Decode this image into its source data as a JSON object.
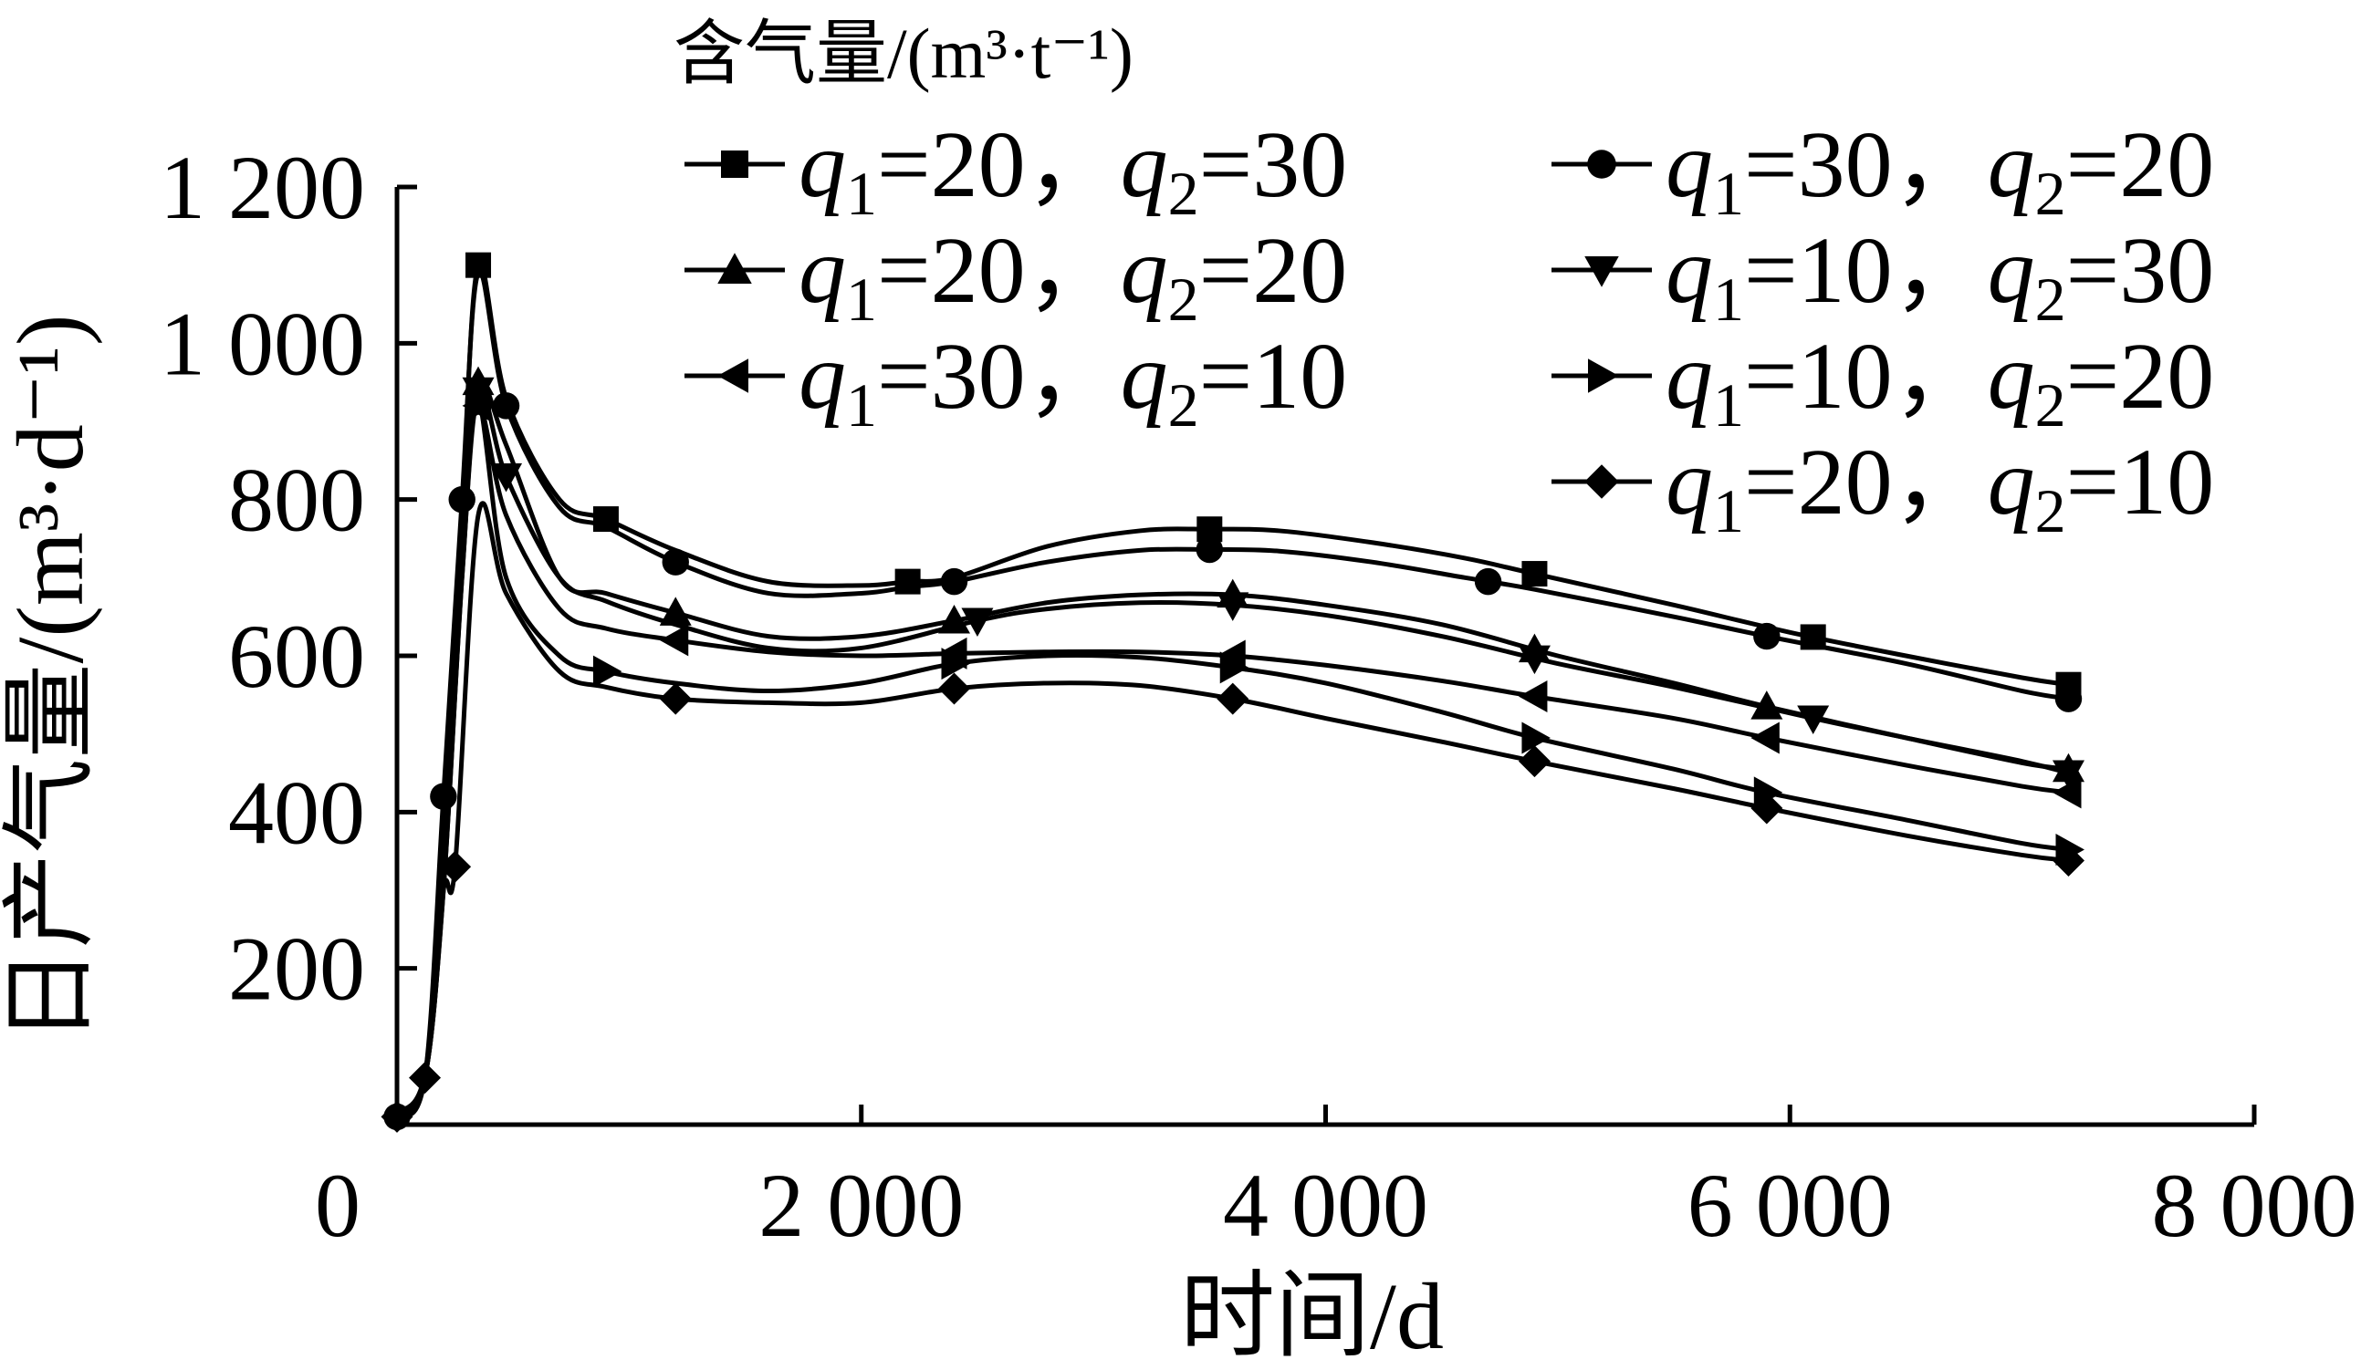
{
  "chart_data": {
    "type": "line",
    "xlabel": "时间/d",
    "ylabel": "日产气量/(m³·d⁻¹)",
    "xlim": [
      0,
      8000
    ],
    "ylim": [
      0,
      1200
    ],
    "x_ticks": [
      0,
      2000,
      4000,
      6000,
      8000
    ],
    "x_tick_labels": [
      "0",
      "2 000",
      "4 000",
      "6 000",
      "8 000"
    ],
    "y_ticks": [
      200,
      400,
      600,
      800,
      1000,
      1200
    ],
    "y_tick_labels": [
      "200",
      "400",
      "600",
      "800",
      "1 000",
      "1 200"
    ],
    "grid": false,
    "legend": {
      "title": "含气量/(m³·t⁻¹)",
      "placement": "top-right",
      "columns": 2
    },
    "series": [
      {
        "name": "q1=20，q2=30",
        "q1": "20",
        "q2": "30",
        "marker": "square",
        "legend_col": 0,
        "legend_row": 0,
        "points": [
          [
            0,
            15
          ],
          [
            120,
            65
          ],
          [
            200,
            330
          ],
          [
            280,
            780
          ],
          [
            350,
            1100
          ],
          [
            470,
            930
          ],
          [
            700,
            800
          ],
          [
            900,
            775
          ],
          [
            1200,
            735
          ],
          [
            1600,
            695
          ],
          [
            2000,
            690
          ],
          [
            2200,
            695
          ],
          [
            2400,
            700
          ],
          [
            2800,
            740
          ],
          [
            3200,
            760
          ],
          [
            3500,
            762
          ],
          [
            3800,
            760
          ],
          [
            4200,
            745
          ],
          [
            4600,
            725
          ],
          [
            4900,
            705
          ],
          [
            5500,
            665
          ],
          [
            6000,
            630
          ],
          [
            6500,
            600
          ],
          [
            7000,
            572
          ],
          [
            7200,
            563
          ]
        ],
        "marker_x": [
          350,
          900,
          2200,
          3500,
          4900,
          6100,
          7200
        ]
      },
      {
        "name": "q1=30，q2=20",
        "q1": "30",
        "q2": "20",
        "marker": "circle",
        "legend_col": 1,
        "legend_row": 0,
        "points": [
          [
            0,
            10
          ],
          [
            120,
            60
          ],
          [
            200,
            420
          ],
          [
            280,
            800
          ],
          [
            350,
            1090
          ],
          [
            470,
            920
          ],
          [
            700,
            790
          ],
          [
            900,
            765
          ],
          [
            1200,
            720
          ],
          [
            1600,
            680
          ],
          [
            2000,
            680
          ],
          [
            2200,
            688
          ],
          [
            2400,
            695
          ],
          [
            2800,
            720
          ],
          [
            3200,
            735
          ],
          [
            3500,
            736
          ],
          [
            3800,
            734
          ],
          [
            4200,
            720
          ],
          [
            4600,
            700
          ],
          [
            4900,
            685
          ],
          [
            5500,
            650
          ],
          [
            5900,
            625
          ],
          [
            6500,
            590
          ],
          [
            7000,
            555
          ],
          [
            7200,
            545
          ]
        ],
        "marker_x": [
          0,
          200,
          280,
          470,
          1200,
          2400,
          3500,
          4700,
          5900,
          7200
        ]
      },
      {
        "name": "q1=20，q2=20",
        "q1": "20",
        "q2": "20",
        "marker": "triangle-up",
        "legend_col": 0,
        "legend_row": 1,
        "points": [
          [
            0,
            10
          ],
          [
            120,
            60
          ],
          [
            200,
            330
          ],
          [
            280,
            780
          ],
          [
            350,
            950
          ],
          [
            470,
            870
          ],
          [
            700,
            700
          ],
          [
            900,
            680
          ],
          [
            1200,
            655
          ],
          [
            1600,
            625
          ],
          [
            2000,
            625
          ],
          [
            2400,
            645
          ],
          [
            2800,
            668
          ],
          [
            3200,
            678
          ],
          [
            3600,
            678
          ],
          [
            4000,
            665
          ],
          [
            4500,
            640
          ],
          [
            5000,
            600
          ],
          [
            5500,
            565
          ],
          [
            5900,
            535
          ],
          [
            6500,
            495
          ],
          [
            7000,
            463
          ],
          [
            7200,
            455
          ]
        ],
        "marker_x": [
          350,
          1200,
          2400,
          3600,
          4900,
          5900,
          7200
        ]
      },
      {
        "name": "q1=10，q2=30",
        "q1": "10",
        "q2": "30",
        "marker": "triangle-down",
        "legend_col": 1,
        "legend_row": 1,
        "points": [
          [
            0,
            10
          ],
          [
            120,
            60
          ],
          [
            200,
            300
          ],
          [
            280,
            700
          ],
          [
            350,
            940
          ],
          [
            470,
            830
          ],
          [
            700,
            700
          ],
          [
            900,
            670
          ],
          [
            1200,
            640
          ],
          [
            1600,
            610
          ],
          [
            2000,
            610
          ],
          [
            2500,
            645
          ],
          [
            2800,
            660
          ],
          [
            3200,
            668
          ],
          [
            3600,
            665
          ],
          [
            4000,
            652
          ],
          [
            4500,
            625
          ],
          [
            5000,
            590
          ],
          [
            5500,
            560
          ],
          [
            6100,
            520
          ],
          [
            6500,
            495
          ],
          [
            7000,
            465
          ],
          [
            7200,
            450
          ]
        ],
        "marker_x": [
          350,
          470,
          2500,
          3600,
          4900,
          6100,
          7200
        ]
      },
      {
        "name": "q1=30，q2=10",
        "q1": "30",
        "q2": "10",
        "marker": "triangle-left",
        "legend_col": 0,
        "legend_row": 2,
        "points": [
          [
            0,
            10
          ],
          [
            120,
            60
          ],
          [
            200,
            310
          ],
          [
            280,
            760
          ],
          [
            350,
            920
          ],
          [
            470,
            780
          ],
          [
            700,
            660
          ],
          [
            900,
            635
          ],
          [
            1200,
            620
          ],
          [
            1600,
            605
          ],
          [
            2000,
            600
          ],
          [
            2400,
            603
          ],
          [
            2800,
            605
          ],
          [
            3200,
            605
          ],
          [
            3600,
            600
          ],
          [
            4000,
            588
          ],
          [
            4500,
            568
          ],
          [
            4900,
            548
          ],
          [
            5500,
            520
          ],
          [
            5900,
            495
          ],
          [
            6500,
            460
          ],
          [
            7000,
            433
          ],
          [
            7200,
            425
          ]
        ],
        "marker_x": [
          350,
          1200,
          2400,
          3600,
          4900,
          5900,
          7200
        ]
      },
      {
        "name": "q1=10，q2=20",
        "q1": "10",
        "q2": "20",
        "marker": "triangle-right",
        "legend_col": 1,
        "legend_row": 2,
        "points": [
          [
            0,
            10
          ],
          [
            120,
            60
          ],
          [
            200,
            300
          ],
          [
            280,
            700
          ],
          [
            350,
            920
          ],
          [
            470,
            700
          ],
          [
            700,
            600
          ],
          [
            900,
            580
          ],
          [
            1200,
            565
          ],
          [
            1600,
            555
          ],
          [
            2000,
            565
          ],
          [
            2400,
            590
          ],
          [
            2800,
            600
          ],
          [
            3200,
            598
          ],
          [
            3600,
            585
          ],
          [
            4000,
            565
          ],
          [
            4500,
            528
          ],
          [
            4900,
            495
          ],
          [
            5500,
            455
          ],
          [
            5900,
            425
          ],
          [
            6500,
            390
          ],
          [
            7000,
            360
          ],
          [
            7200,
            352
          ]
        ],
        "marker_x": [
          350,
          900,
          2400,
          3600,
          4900,
          5900,
          7200
        ]
      },
      {
        "name": "q1=20，q2=10",
        "q1": "20",
        "q2": "10",
        "marker": "diamond",
        "legend_col": 1,
        "legend_row": 3,
        "points": [
          [
            0,
            10
          ],
          [
            120,
            60
          ],
          [
            200,
            300
          ],
          [
            250,
            330
          ],
          [
            350,
            780
          ],
          [
            470,
            680
          ],
          [
            700,
            580
          ],
          [
            900,
            560
          ],
          [
            1200,
            545
          ],
          [
            1600,
            540
          ],
          [
            2000,
            540
          ],
          [
            2400,
            558
          ],
          [
            2800,
            565
          ],
          [
            3200,
            562
          ],
          [
            3600,
            545
          ],
          [
            4000,
            520
          ],
          [
            4500,
            490
          ],
          [
            4900,
            465
          ],
          [
            5500,
            430
          ],
          [
            5900,
            405
          ],
          [
            6500,
            370
          ],
          [
            7000,
            345
          ],
          [
            7200,
            338
          ]
        ],
        "marker_x": [
          0,
          120,
          250,
          1200,
          2400,
          3600,
          4900,
          5900,
          7200
        ]
      }
    ]
  }
}
